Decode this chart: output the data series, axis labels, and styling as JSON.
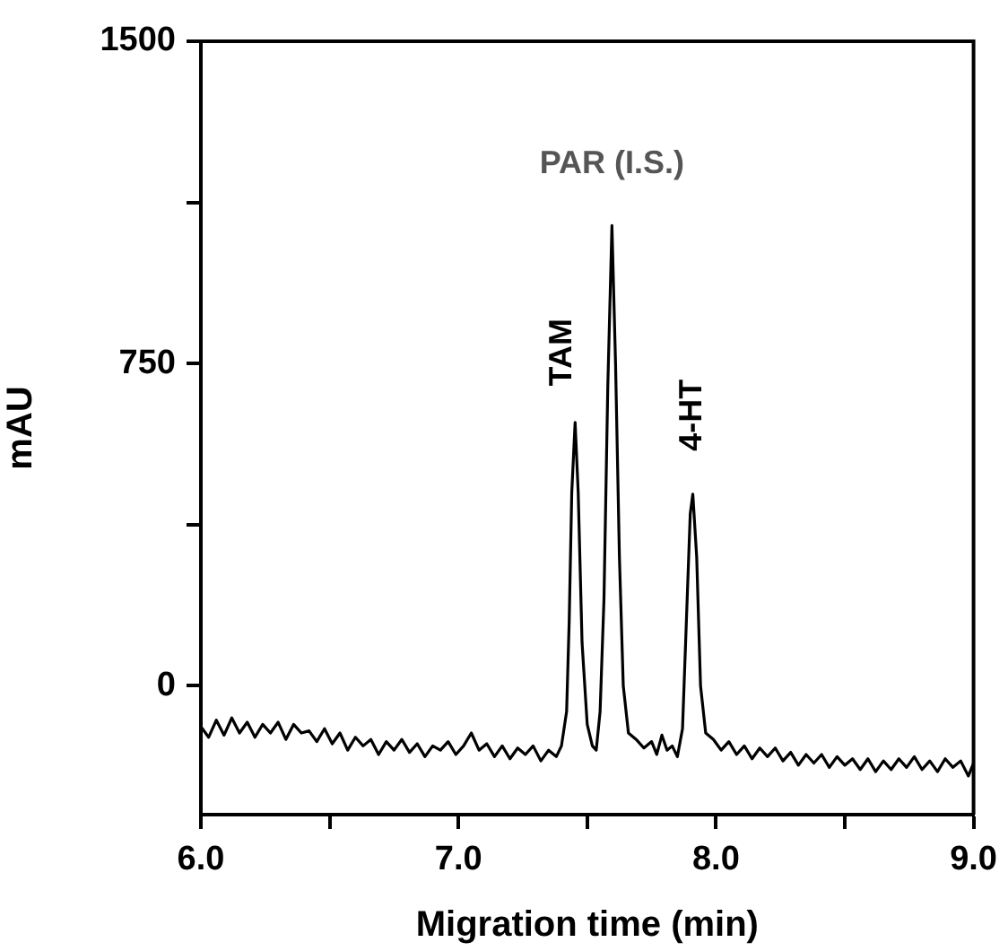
{
  "chart_data": {
    "type": "line",
    "xlabel": "Migration time (min)",
    "ylabel": "mAU",
    "xlim": [
      6.0,
      9.0
    ],
    "xticks": [
      {
        "value": 6.0,
        "label": "6.0"
      },
      {
        "value": 6.5,
        "label": null
      },
      {
        "value": 7.0,
        "label": "7.0"
      },
      {
        "value": 7.5,
        "label": null
      },
      {
        "value": 8.0,
        "label": "8.0"
      },
      {
        "value": 8.5,
        "label": null
      },
      {
        "value": 9.0,
        "label": "9.0"
      }
    ],
    "ylim": [
      -300,
      1500
    ],
    "yticks": [
      0,
      {
        "value": 375,
        "label": null
      },
      750,
      {
        "value": 1125,
        "label": null
      },
      1500
    ],
    "grid": false,
    "legend": false,
    "marker": "none",
    "line_style": "solid",
    "series": [
      {
        "color": "#000000",
        "x": [
          6.0,
          6.03,
          6.06,
          6.09,
          6.12,
          6.15,
          6.18,
          6.21,
          6.24,
          6.27,
          6.3,
          6.33,
          6.36,
          6.39,
          6.42,
          6.45,
          6.48,
          6.51,
          6.54,
          6.57,
          6.6,
          6.63,
          6.66,
          6.69,
          6.72,
          6.75,
          6.78,
          6.81,
          6.84,
          6.87,
          6.9,
          6.93,
          6.96,
          6.99,
          7.02,
          7.05,
          7.08,
          7.11,
          7.14,
          7.17,
          7.2,
          7.23,
          7.26,
          7.29,
          7.32,
          7.35,
          7.38,
          7.4,
          7.42,
          7.43,
          7.44,
          7.453,
          7.465,
          7.48,
          7.5,
          7.52,
          7.535,
          7.55,
          7.565,
          7.58,
          7.596,
          7.61,
          7.625,
          7.64,
          7.66,
          7.69,
          7.72,
          7.75,
          7.77,
          7.79,
          7.81,
          7.83,
          7.85,
          7.87,
          7.885,
          7.9,
          7.91,
          7.925,
          7.94,
          7.96,
          7.99,
          8.02,
          8.05,
          8.08,
          8.11,
          8.14,
          8.17,
          8.2,
          8.23,
          8.26,
          8.29,
          8.32,
          8.35,
          8.38,
          8.41,
          8.44,
          8.47,
          8.5,
          8.53,
          8.56,
          8.59,
          8.62,
          8.65,
          8.68,
          8.71,
          8.74,
          8.77,
          8.8,
          8.83,
          8.86,
          8.89,
          8.92,
          8.95,
          8.98,
          9.0
        ],
        "values": [
          -95,
          -120,
          -80,
          -115,
          -75,
          -110,
          -85,
          -120,
          -90,
          -110,
          -85,
          -125,
          -90,
          -110,
          -105,
          -130,
          -100,
          -135,
          -110,
          -150,
          -120,
          -140,
          -125,
          -160,
          -130,
          -150,
          -125,
          -155,
          -135,
          -165,
          -140,
          -150,
          -130,
          -160,
          -140,
          -110,
          -150,
          -135,
          -165,
          -140,
          -170,
          -145,
          -160,
          -140,
          -175,
          -150,
          -165,
          -140,
          -60,
          150,
          450,
          613,
          450,
          100,
          -90,
          -140,
          -150,
          -60,
          200,
          700,
          1071,
          750,
          300,
          0,
          -110,
          -125,
          -145,
          -130,
          -160,
          -115,
          -150,
          -140,
          -165,
          -100,
          150,
          400,
          446,
          300,
          0,
          -110,
          -125,
          -150,
          -130,
          -160,
          -140,
          -170,
          -145,
          -165,
          -145,
          -175,
          -155,
          -185,
          -160,
          -180,
          -160,
          -190,
          -165,
          -185,
          -170,
          -195,
          -170,
          -200,
          -175,
          -195,
          -170,
          -190,
          -165,
          -195,
          -175,
          -200,
          -170,
          -190,
          -175,
          -210,
          -180
        ]
      }
    ],
    "annotations": [
      {
        "text": "TAM",
        "x": 7.453,
        "y": 613
      },
      {
        "text": "PAR (I.S.)",
        "x": 7.596,
        "y": 1071
      },
      {
        "text": "4-HT",
        "x": 7.91,
        "y": 446
      }
    ]
  }
}
